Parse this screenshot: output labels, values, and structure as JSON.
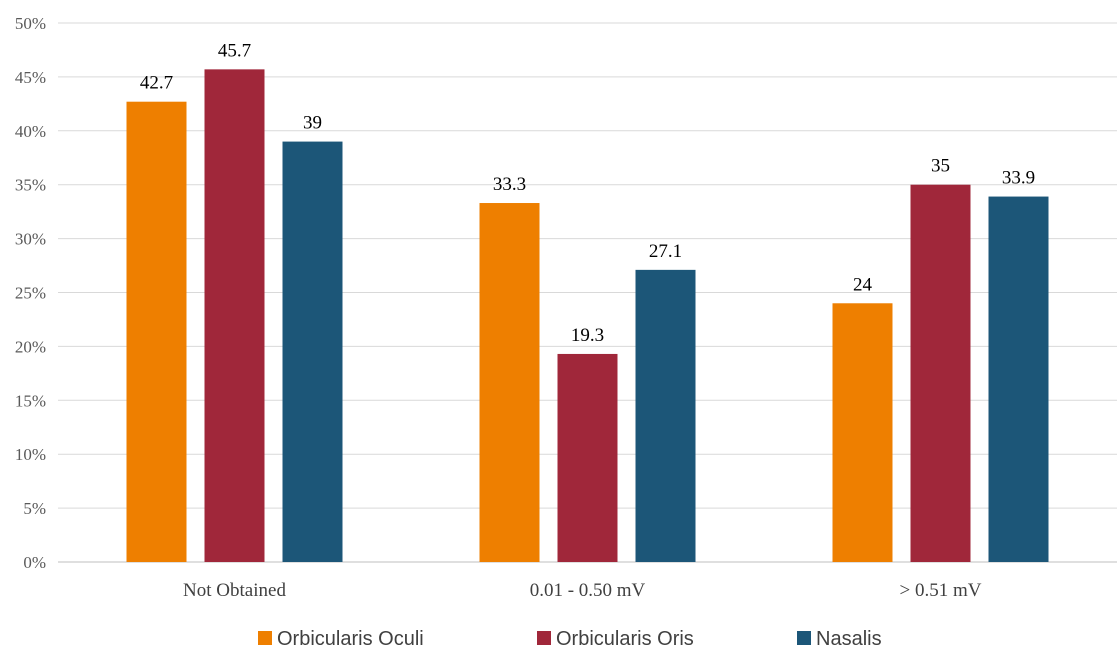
{
  "chart_data": {
    "type": "bar",
    "title": "",
    "xlabel": "",
    "ylabel": "",
    "categories": [
      "Not Obtained",
      "0.01 - 0.50 mV",
      "> 0.51 mV"
    ],
    "series": [
      {
        "name": "Orbicularis Oculi",
        "values": [
          42.7,
          33.3,
          24
        ],
        "labels": [
          "42.7",
          "33.3",
          "24"
        ],
        "color": "#ee7f00"
      },
      {
        "name": "Orbicularis Oris",
        "values": [
          45.7,
          19.3,
          35
        ],
        "labels": [
          "45.7",
          "19.3",
          "35"
        ],
        "color": "#a0273a"
      },
      {
        "name": "Nasalis",
        "values": [
          39,
          27.1,
          33.9
        ],
        "labels": [
          "39",
          "27.1",
          "33.9"
        ],
        "color": "#1c5678"
      }
    ],
    "ylim": [
      0,
      50
    ],
    "yticks": [
      "0%",
      "5%",
      "10%",
      "15%",
      "20%",
      "25%",
      "30%",
      "35%",
      "40%",
      "45%",
      "50%"
    ],
    "grid": true,
    "legend": "bottom"
  }
}
